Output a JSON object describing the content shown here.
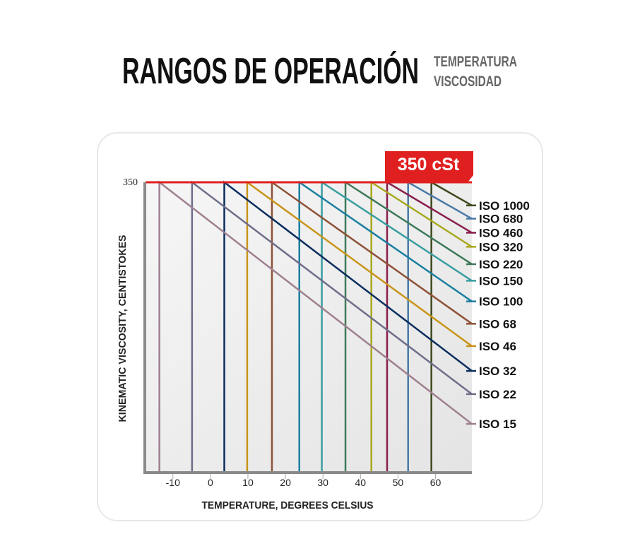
{
  "chart_data": {
    "type": "line",
    "title": "RANGOS DE OPERACIÓN",
    "subtitle": [
      "TEMPERATURA",
      "VISCOSIDAD"
    ],
    "annotation": "350 cSt",
    "xlabel": "TEMPERATURE, DEGREES CELSIUS",
    "ylabel": "KINEMATIC VISCOSITY, CENTISTOKES",
    "xlim": [
      -17.3,
      69.7
    ],
    "ylim": [
      0,
      350
    ],
    "xticks": [
      -10,
      0,
      10,
      20,
      30,
      40,
      50,
      60
    ],
    "yticks": [
      350
    ],
    "limit_color": "#e02020",
    "series": [
      {
        "name": "ISO 1000",
        "color": "#3e4a1f",
        "x": [
          58.9,
          58.9,
          69.7
        ],
        "values": [
          0,
          350,
          322
        ]
      },
      {
        "name": "ISO 680",
        "color": "#4a7aa6",
        "x": [
          52.7,
          52.7,
          69.7
        ],
        "values": [
          0,
          350,
          306
        ]
      },
      {
        "name": "ISO 460",
        "color": "#8a1f4e",
        "x": [
          47.1,
          47.1,
          69.7
        ],
        "values": [
          0,
          350,
          289
        ]
      },
      {
        "name": "ISO 320",
        "color": "#a8a81e",
        "x": [
          42.9,
          42.9,
          69.7
        ],
        "values": [
          0,
          350,
          272
        ]
      },
      {
        "name": "ISO 220",
        "color": "#3f7a5a",
        "x": [
          36.0,
          36.0,
          69.7
        ],
        "values": [
          0,
          350,
          251
        ]
      },
      {
        "name": "ISO 150",
        "color": "#3a9ea0",
        "x": [
          29.7,
          29.7,
          69.7
        ],
        "values": [
          0,
          350,
          231
        ]
      },
      {
        "name": "ISO 100",
        "color": "#1b7fa0",
        "x": [
          23.7,
          23.7,
          69.7
        ],
        "values": [
          0,
          350,
          206
        ]
      },
      {
        "name": "ISO 68",
        "color": "#8e5238",
        "x": [
          16.4,
          16.4,
          69.7
        ],
        "values": [
          0,
          350,
          179
        ]
      },
      {
        "name": "ISO 46",
        "color": "#c8951a",
        "x": [
          9.8,
          9.8,
          69.7
        ],
        "values": [
          0,
          350,
          152
        ]
      },
      {
        "name": "ISO 32",
        "color": "#0b2e5e",
        "x": [
          3.7,
          3.7,
          69.7
        ],
        "values": [
          0,
          350,
          122
        ]
      },
      {
        "name": "ISO 22",
        "color": "#6e6e8a",
        "x": [
          -4.9,
          -4.9,
          69.7
        ],
        "values": [
          0,
          350,
          94
        ]
      },
      {
        "name": "ISO 15",
        "color": "#9e7f8f",
        "x": [
          -13.6,
          -13.6,
          69.7
        ],
        "values": [
          0,
          350,
          58
        ]
      }
    ]
  }
}
